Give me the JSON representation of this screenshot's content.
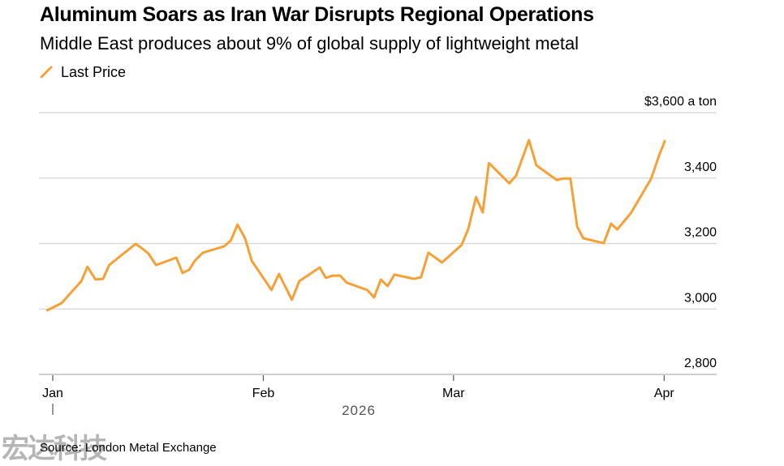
{
  "header": {
    "title": "Aluminum Soars as Iran War Disrupts Regional Operations",
    "subtitle": "Middle East produces about 9% of global supply of lightweight metal"
  },
  "legend": {
    "items": [
      {
        "label": "Last Price",
        "color": "#f7a035",
        "icon": "diagonal-line-icon"
      }
    ]
  },
  "footer": {
    "source": "Source: London Metal Exchange",
    "watermark": "宏达科技"
  },
  "chart_data": {
    "type": "line",
    "title": "Aluminum Soars as Iran War Disrupts Regional Operations",
    "subtitle": "Middle East produces about 9% of global supply of lightweight metal",
    "xlabel": "2026",
    "ylabel": "$ a ton",
    "unit_label": "$3,600 a ton",
    "ylim": [
      2800,
      3600
    ],
    "y_ticks": [
      {
        "value": 3600,
        "label": "$3,600 a ton"
      },
      {
        "value": 3400,
        "label": "3,400"
      },
      {
        "value": 3200,
        "label": "3,200"
      },
      {
        "value": 3000,
        "label": "3,000"
      },
      {
        "value": 2800,
        "label": "2,800"
      }
    ],
    "x_ticks": [
      {
        "day": 0,
        "label": "Jan"
      },
      {
        "day": 31,
        "label": "Feb"
      },
      {
        "day": 59,
        "label": "Mar"
      },
      {
        "day": 90,
        "label": "Apr"
      }
    ],
    "xlim_days": [
      -0.8,
      91.5
    ],
    "grid": true,
    "legend_position": "top-left",
    "series": [
      {
        "name": "Last Price",
        "color": "#f7a035",
        "points": [
          {
            "day": -0.8,
            "value": 2996
          },
          {
            "day": 1.3,
            "value": 3018
          },
          {
            "day": 4.2,
            "value": 3085
          },
          {
            "day": 5.1,
            "value": 3129
          },
          {
            "day": 6.3,
            "value": 3090
          },
          {
            "day": 7.4,
            "value": 3092
          },
          {
            "day": 8.3,
            "value": 3134
          },
          {
            "day": 12.2,
            "value": 3199
          },
          {
            "day": 13.4,
            "value": 3181
          },
          {
            "day": 14.1,
            "value": 3169
          },
          {
            "day": 15.2,
            "value": 3134
          },
          {
            "day": 18.2,
            "value": 3157
          },
          {
            "day": 19.1,
            "value": 3110
          },
          {
            "day": 20.1,
            "value": 3120
          },
          {
            "day": 20.9,
            "value": 3147
          },
          {
            "day": 22.1,
            "value": 3172
          },
          {
            "day": 25.2,
            "value": 3191
          },
          {
            "day": 26.2,
            "value": 3209
          },
          {
            "day": 27.2,
            "value": 3258
          },
          {
            "day": 28.3,
            "value": 3216
          },
          {
            "day": 29.3,
            "value": 3147
          },
          {
            "day": 32.2,
            "value": 3058
          },
          {
            "day": 33.3,
            "value": 3107
          },
          {
            "day": 35.2,
            "value": 3028
          },
          {
            "day": 36.3,
            "value": 3085
          },
          {
            "day": 39.3,
            "value": 3127
          },
          {
            "day": 40.2,
            "value": 3095
          },
          {
            "day": 41.2,
            "value": 3102
          },
          {
            "day": 42.3,
            "value": 3102
          },
          {
            "day": 43.3,
            "value": 3080
          },
          {
            "day": 46.3,
            "value": 3058
          },
          {
            "day": 47.3,
            "value": 3035
          },
          {
            "day": 48.3,
            "value": 3090
          },
          {
            "day": 49.3,
            "value": 3070
          },
          {
            "day": 50.3,
            "value": 3105
          },
          {
            "day": 53.2,
            "value": 3092
          },
          {
            "day": 54.2,
            "value": 3097
          },
          {
            "day": 55.3,
            "value": 3172
          },
          {
            "day": 57.3,
            "value": 3142
          },
          {
            "day": 60.2,
            "value": 3196
          },
          {
            "day": 61.2,
            "value": 3246
          },
          {
            "day": 62.3,
            "value": 3342
          },
          {
            "day": 63.3,
            "value": 3295
          },
          {
            "day": 64.2,
            "value": 3446
          },
          {
            "day": 67.2,
            "value": 3384
          },
          {
            "day": 68.2,
            "value": 3407
          },
          {
            "day": 70.1,
            "value": 3516
          },
          {
            "day": 71.2,
            "value": 3439
          },
          {
            "day": 74.2,
            "value": 3394
          },
          {
            "day": 75.2,
            "value": 3399
          },
          {
            "day": 76.2,
            "value": 3399
          },
          {
            "day": 77.2,
            "value": 3251
          },
          {
            "day": 78.1,
            "value": 3216
          },
          {
            "day": 81.1,
            "value": 3201
          },
          {
            "day": 82.2,
            "value": 3261
          },
          {
            "day": 83.1,
            "value": 3243
          },
          {
            "day": 85.1,
            "value": 3293
          },
          {
            "day": 88.1,
            "value": 3399
          },
          {
            "day": 89.2,
            "value": 3466
          },
          {
            "day": 90.1,
            "value": 3513
          }
        ]
      }
    ]
  }
}
